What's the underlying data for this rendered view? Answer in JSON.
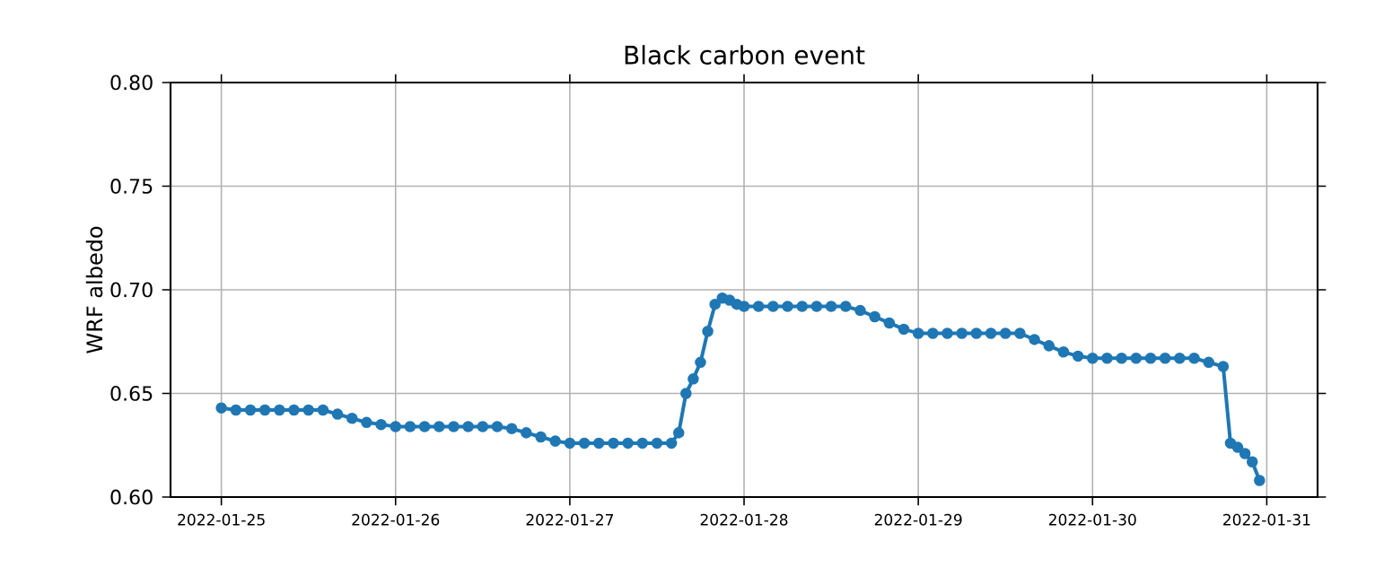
{
  "chart_data": {
    "type": "line",
    "title": "Black carbon event",
    "ylabel": "WRF albedo",
    "x": [
      "2022-01-25T00:00",
      "2022-01-25T02:00",
      "2022-01-25T04:00",
      "2022-01-25T06:00",
      "2022-01-25T08:00",
      "2022-01-25T10:00",
      "2022-01-25T12:00",
      "2022-01-25T14:00",
      "2022-01-25T16:00",
      "2022-01-25T18:00",
      "2022-01-25T20:00",
      "2022-01-25T22:00",
      "2022-01-26T00:00",
      "2022-01-26T02:00",
      "2022-01-26T04:00",
      "2022-01-26T06:00",
      "2022-01-26T08:00",
      "2022-01-26T10:00",
      "2022-01-26T12:00",
      "2022-01-26T14:00",
      "2022-01-26T16:00",
      "2022-01-26T18:00",
      "2022-01-26T20:00",
      "2022-01-26T22:00",
      "2022-01-27T00:00",
      "2022-01-27T02:00",
      "2022-01-27T04:00",
      "2022-01-27T06:00",
      "2022-01-27T08:00",
      "2022-01-27T10:00",
      "2022-01-27T12:00",
      "2022-01-27T14:00",
      "2022-01-27T15:00",
      "2022-01-27T16:00",
      "2022-01-27T17:00",
      "2022-01-27T18:00",
      "2022-01-27T19:00",
      "2022-01-27T20:00",
      "2022-01-27T21:00",
      "2022-01-27T22:00",
      "2022-01-27T23:00",
      "2022-01-28T00:00",
      "2022-01-28T02:00",
      "2022-01-28T04:00",
      "2022-01-28T06:00",
      "2022-01-28T08:00",
      "2022-01-28T10:00",
      "2022-01-28T12:00",
      "2022-01-28T14:00",
      "2022-01-28T16:00",
      "2022-01-28T18:00",
      "2022-01-28T20:00",
      "2022-01-28T22:00",
      "2022-01-29T00:00",
      "2022-01-29T02:00",
      "2022-01-29T04:00",
      "2022-01-29T06:00",
      "2022-01-29T08:00",
      "2022-01-29T10:00",
      "2022-01-29T12:00",
      "2022-01-29T14:00",
      "2022-01-29T16:00",
      "2022-01-29T18:00",
      "2022-01-29T20:00",
      "2022-01-29T22:00",
      "2022-01-30T00:00",
      "2022-01-30T02:00",
      "2022-01-30T04:00",
      "2022-01-30T06:00",
      "2022-01-30T08:00",
      "2022-01-30T10:00",
      "2022-01-30T12:00",
      "2022-01-30T14:00",
      "2022-01-30T16:00",
      "2022-01-30T18:00",
      "2022-01-30T19:00",
      "2022-01-30T20:00",
      "2022-01-30T21:00",
      "2022-01-30T22:00",
      "2022-01-30T23:00"
    ],
    "series": [
      {
        "color": "#1f77b4",
        "values": [
          0.643,
          0.642,
          0.642,
          0.642,
          0.642,
          0.642,
          0.642,
          0.642,
          0.64,
          0.638,
          0.636,
          0.635,
          0.634,
          0.634,
          0.634,
          0.634,
          0.634,
          0.634,
          0.634,
          0.634,
          0.633,
          0.631,
          0.629,
          0.627,
          0.626,
          0.626,
          0.626,
          0.626,
          0.626,
          0.626,
          0.626,
          0.626,
          0.631,
          0.65,
          0.657,
          0.665,
          0.68,
          0.693,
          0.696,
          0.695,
          0.693,
          0.692,
          0.692,
          0.692,
          0.692,
          0.692,
          0.692,
          0.692,
          0.692,
          0.69,
          0.687,
          0.684,
          0.681,
          0.679,
          0.679,
          0.679,
          0.679,
          0.679,
          0.679,
          0.679,
          0.679,
          0.676,
          0.673,
          0.67,
          0.668,
          0.667,
          0.667,
          0.667,
          0.667,
          0.667,
          0.667,
          0.667,
          0.667,
          0.665,
          0.663,
          0.626,
          0.624,
          0.621,
          0.617,
          0.608
        ]
      }
    ],
    "xlim": [
      "2022-01-24T17:00",
      "2022-01-31T07:00"
    ],
    "xticks": [
      "2022-01-25",
      "2022-01-26",
      "2022-01-27",
      "2022-01-28",
      "2022-01-29",
      "2022-01-30",
      "2022-01-31"
    ],
    "ylim": [
      0.6,
      0.8
    ],
    "yticks": [
      {
        "value": 0.6,
        "label": "0.60"
      },
      {
        "value": 0.65,
        "label": "0.65"
      },
      {
        "value": 0.7,
        "label": "0.70"
      },
      {
        "value": 0.75,
        "label": "0.75"
      },
      {
        "value": 0.8,
        "label": "0.80"
      }
    ],
    "grid": true,
    "marker": "circle",
    "line_style": "solid"
  }
}
